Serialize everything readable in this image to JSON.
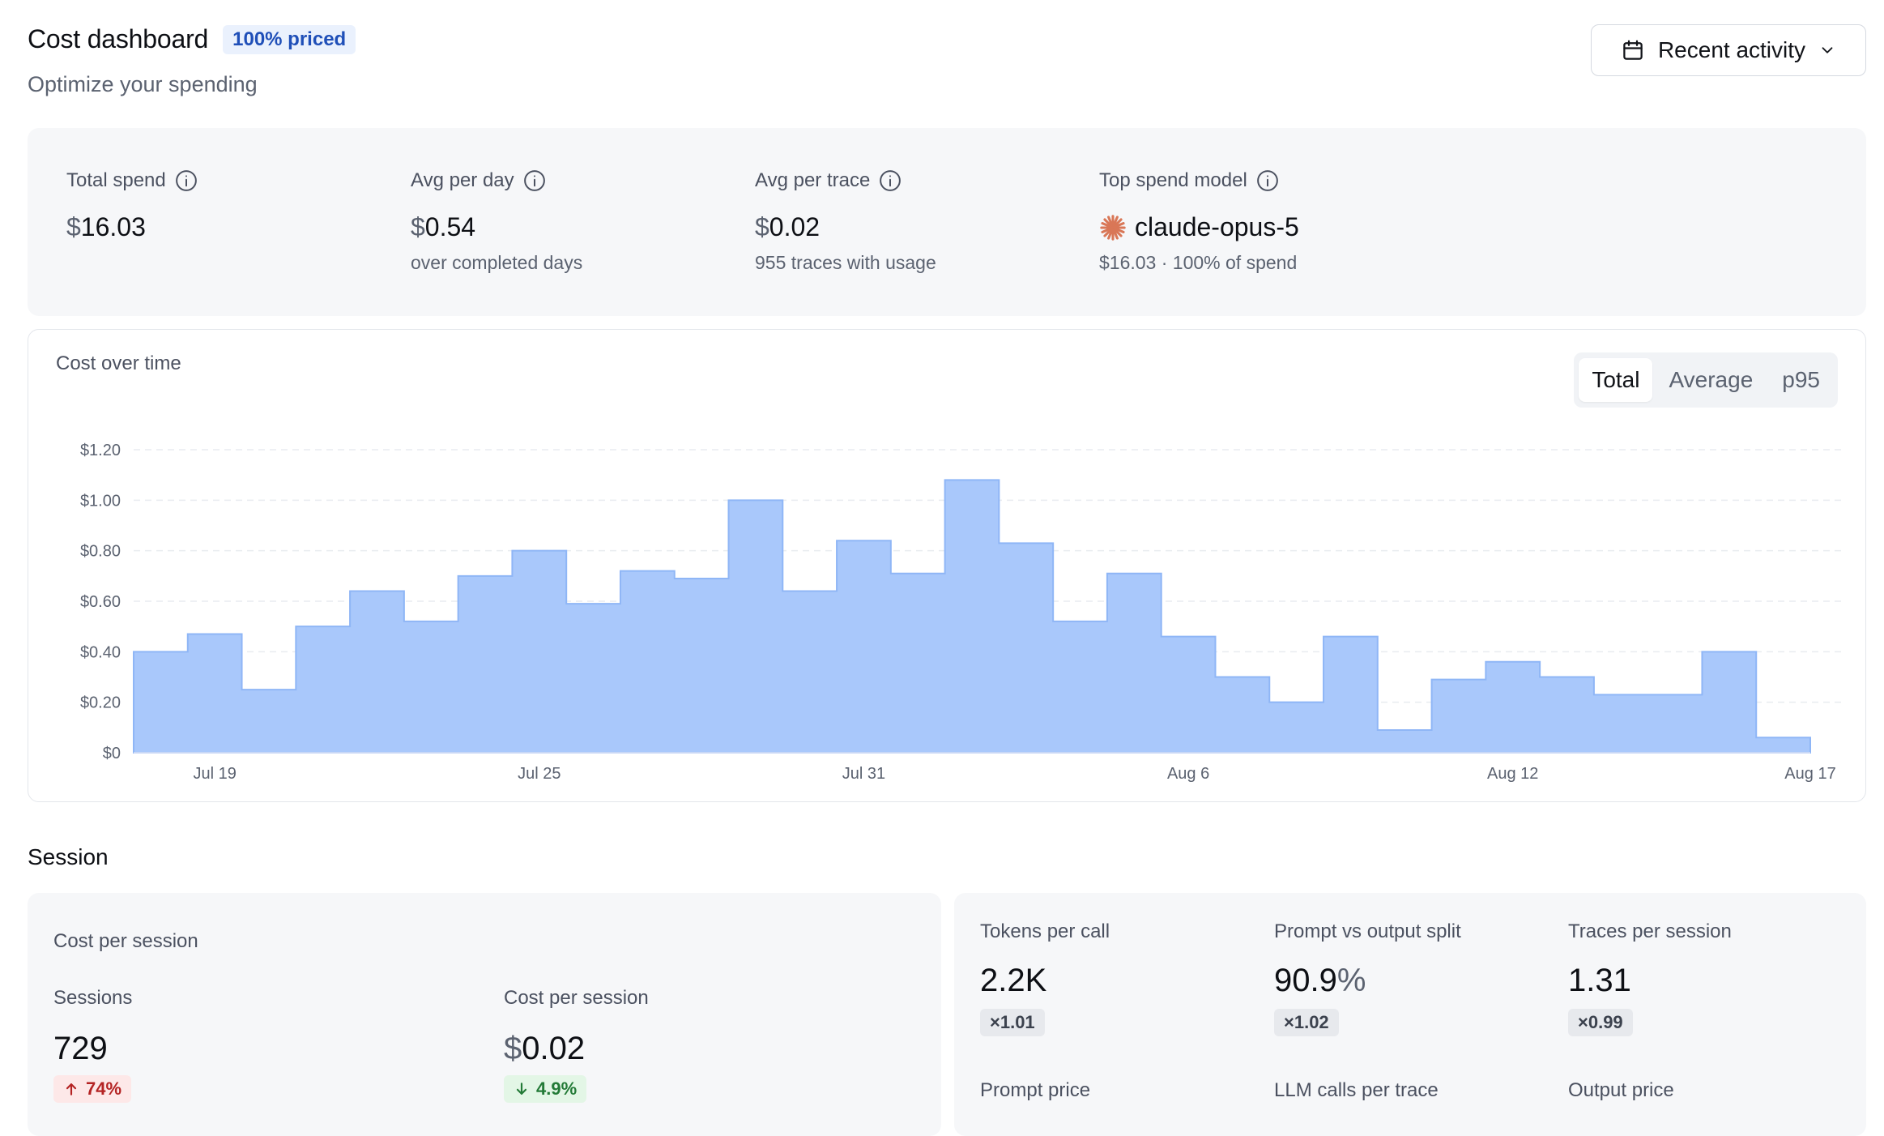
{
  "header": {
    "title": "Cost dashboard",
    "badge": "100% priced",
    "subtitle": "Optimize your spending",
    "range_label": "Recent activity"
  },
  "stats": {
    "total_spend": {
      "label": "Total spend",
      "currency": "$",
      "value": "16.03"
    },
    "avg_per_day": {
      "label": "Avg per day",
      "currency": "$",
      "value": "0.54",
      "sub": "over completed days"
    },
    "avg_per_trace": {
      "label": "Avg per trace",
      "currency": "$",
      "value": "0.02",
      "sub": "955 traces with usage"
    },
    "top_model": {
      "label": "Top spend model",
      "value": "claude-opus-5",
      "sub": "$16.03 · 100% of spend",
      "icon": "claude-asterisk-icon",
      "icon_color": "#d97757"
    }
  },
  "chart_section": {
    "title": "Cost over time",
    "modes": [
      "Total",
      "Average",
      "p95"
    ],
    "active_mode": "Total"
  },
  "chart_data": {
    "type": "area",
    "step": true,
    "title": "",
    "xlabel": "",
    "ylabel": "",
    "x_ticks": [
      "Jul 19",
      "Jul 25",
      "Jul 31",
      "Aug 6",
      "Aug 12",
      "Aug 17"
    ],
    "y_ticks": [
      "$0",
      "$0.20",
      "$0.40",
      "$0.60",
      "$0.80",
      "$1.00",
      "$1.20"
    ],
    "ylim": [
      0,
      1.2
    ],
    "grid": true,
    "color": "#a9c8fb",
    "stroke": "#8fb6f6",
    "categories": [
      "Jul 18",
      "Jul 19",
      "Jul 20",
      "Jul 21",
      "Jul 22",
      "Jul 23",
      "Jul 24",
      "Jul 25",
      "Jul 26",
      "Jul 27",
      "Jul 28",
      "Jul 29",
      "Jul 30",
      "Jul 31",
      "Aug 1",
      "Aug 2",
      "Aug 3",
      "Aug 4",
      "Aug 5",
      "Aug 6",
      "Aug 7",
      "Aug 8",
      "Aug 9",
      "Aug 10",
      "Aug 11",
      "Aug 12",
      "Aug 13",
      "Aug 14",
      "Aug 15",
      "Aug 16",
      "Aug 17"
    ],
    "values": [
      0.4,
      0.47,
      0.25,
      0.5,
      0.64,
      0.52,
      0.7,
      0.8,
      0.59,
      0.72,
      0.69,
      1.0,
      0.64,
      0.84,
      0.71,
      1.08,
      0.83,
      0.52,
      0.71,
      0.46,
      0.3,
      0.2,
      0.46,
      0.09,
      0.29,
      0.36,
      0.3,
      0.23,
      0.23,
      0.4,
      0.06
    ]
  },
  "session": {
    "section_title": "Session",
    "card_title": "Cost per session",
    "sessions": {
      "label": "Sessions",
      "value": "729",
      "delta": "74%",
      "direction": "up"
    },
    "cost_per_session": {
      "label": "Cost per session",
      "currency": "$",
      "value": "0.02",
      "delta": "4.9%",
      "direction": "down"
    }
  },
  "tokens": {
    "tokens_per_call": {
      "label": "Tokens per call",
      "value": "2.2K",
      "mult": "×1.01"
    },
    "prompt_output_split": {
      "label": "Prompt vs output split",
      "value": "90.9",
      "unit": "%",
      "mult": "×1.02"
    },
    "traces_per_session": {
      "label": "Traces per session",
      "value": "1.31",
      "mult": "×0.99"
    },
    "prompt_price": {
      "label": "Prompt price"
    },
    "llm_calls_per_trace": {
      "label": "LLM calls per trace"
    },
    "output_price": {
      "label": "Output price"
    }
  }
}
